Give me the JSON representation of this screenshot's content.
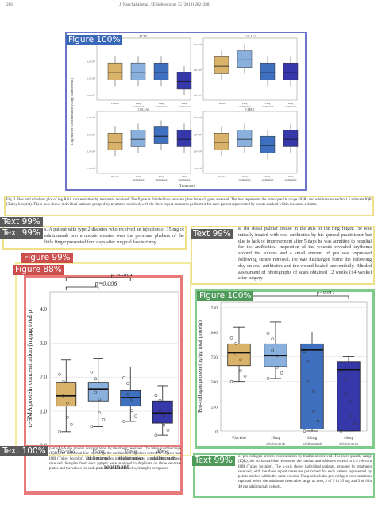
{
  "header": {
    "page": "286",
    "journal": "J. Nanchahal et al. / EBioMedicine 35 (2018) 282–288"
  },
  "tags": {
    "fig_top": "Figure 100%",
    "text_1": "Text 99%",
    "text_2": "Text 99%",
    "fig_left_outer": "Figure 99%",
    "fig_left_inner": "Figure 88%",
    "fig_right": "Figure 100%",
    "text_3": "Text 100%",
    "text_4": "Text 99%"
  },
  "top_figure": {
    "ylabel": "Log mRNA Concentration (Copy number/Std)",
    "xlabel": "Treatment",
    "panels": [
      "ACTA2",
      "COL1A1",
      "COL3A1",
      "CDH11"
    ],
    "yticks_a": [
      "1.0×10⁶",
      "1.0×10⁵",
      "1.0×10⁴",
      "1.0×10³"
    ],
    "yticks_b": [
      "1.0×10⁶",
      "1.0×10⁵",
      "1.0×10⁴"
    ],
    "categories": [
      "Placebo",
      "15mg adalimumab",
      "35mg adalimumab",
      "40mg adalimumab"
    ]
  },
  "caption_fig2": "Fig. 2. Box and whiskers plot of log RNA concentration by treatment received. The figure is divided into separate plots for each gene assessed. The box represents the inter-quartile range (IQR) and whiskers extend to 1.5 relevant IQR (Tukey boxplot). The x-axis shows individual patients, grouped by treatment received, with the three repeat measures performed for each patient represented by points stacked within the same column.",
  "text_left": "s. A patient with type 2 diabetes who received an injection of 35 mg of adalimumab into a nodule situated over the proximal phalanx of the little finger presented four days after surgical fasciectomy",
  "text_right": "at the distal palmar crease in the axis of the ring finger. He was initially treated with oral antibiotics by his general practitioner but due to lack of improvement after 5 days he was admitted to hospital for i.v. antibiotics. Inspection of the wounds revealed erythema around the sutures and a small amount of pus was expressed following suture removal. He was discharged home the following day on oral antibiotics and the wound healed uneventfully. Blinded assessment of photographs of scars obtained 12 weeks (±4 weeks) after surgery",
  "chart_data": [
    {
      "type": "box",
      "title": "",
      "ylabel": "α-SMA protein concentration (ng/μg total p",
      "xlabel": "Treatment",
      "categories": [
        "Placebo",
        "15mg adalimumab",
        "35mg adalimumab",
        "40mg adalimumab"
      ],
      "ylim": [
        0,
        4.5
      ],
      "yticks": [
        0.0,
        1.0,
        2.0,
        3.0,
        4.0
      ],
      "boxes": [
        {
          "q1": 1.15,
          "median": 1.45,
          "q3": 1.85,
          "low": 0.4,
          "high": 2.5,
          "color": "#d9b36a"
        },
        {
          "q1": 1.3,
          "median": 1.65,
          "q3": 1.85,
          "low": 0.55,
          "high": 2.55,
          "color": "#8ab0de"
        },
        {
          "q1": 1.15,
          "median": 1.4,
          "q3": 1.6,
          "low": 0.7,
          "high": 2.3,
          "color": "#3f6fbf"
        },
        {
          "q1": 0.65,
          "median": 0.95,
          "q3": 1.3,
          "low": 0.3,
          "high": 1.75,
          "color": "#3637a8"
        }
      ],
      "brackets": [
        {
          "from": 0,
          "to": 3,
          "label": "p=0.024"
        },
        {
          "from": 0,
          "to": 2,
          "label": "p<0.001"
        },
        {
          "from": 0,
          "to": 1,
          "label": "p=0.006"
        }
      ]
    },
    {
      "type": "box",
      "title": "",
      "ylabel": "Pro-collagen protein (pg/μg total protein)",
      "xlabel": "Treatment",
      "categories": [
        "Placebo",
        "15mg adalimumab",
        "35mg adalimumab",
        "40mg adalimumab"
      ],
      "ylim": [
        0,
        1300
      ],
      "yticks": [
        0,
        250,
        500,
        750,
        1000,
        1250
      ],
      "boxes": [
        {
          "q1": 660,
          "median": 790,
          "q3": 880,
          "low": 500,
          "high": 1050,
          "color": "#d9b36a"
        },
        {
          "q1": 650,
          "median": 760,
          "q3": 880,
          "low": 530,
          "high": 1100,
          "color": "#8ab0de"
        },
        {
          "q1": 20,
          "median": 820,
          "q3": 880,
          "low": 0,
          "high": 1000,
          "color": "#3f6fbf"
        },
        {
          "q1": 0,
          "median": 620,
          "q3": 700,
          "low": 0,
          "high": 750,
          "color": "#3637a8"
        }
      ],
      "brackets": [
        {
          "from": 0,
          "to": 3,
          "label": "p=0.014"
        }
      ]
    }
  ],
  "caption_left": "plot of α-SMA protein concentration by treatment received. The inter-quartile range (IQR), the horizontal line represents the median and whiskers extend to 1.5 relevant IQR (Tukey boxplot). The x-axis shows individual patients, grouped by treatment received. Samples from each patient were analysed in duplicate on three separate plates and the values for each plate are shown as circles, triangles or squares.",
  "caption_right": "of pro-collagen protein concentration by treatment received. The inter-quartile range (IQR), the horizontal line represents the median and whiskers extend to 1.5 relevant IQR (Tukey boxplot). The x-axis shows individual patients, grouped by treatment received, with the three repeat measures performed for each patient represented by points stacked within the same column. The plot includes pro-collagen concentrations reported below the minimum detectable range as zero, 3 of 9 in 35 mg and 3 of 6 in 40 mg adalimumab cohorts."
}
